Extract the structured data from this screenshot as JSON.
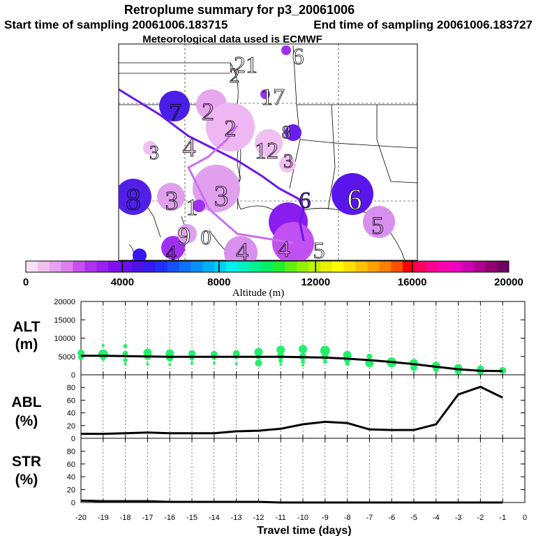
{
  "header": {
    "title": "Retroplume summary for p3_20061006",
    "start_label": "Start time of sampling 20061006.183715",
    "end_label": "End time of sampling 20061006.183727",
    "met_label": "Meteorological data used is ECMWF"
  },
  "map_labels": [
    {
      "text": "21",
      "color": "#ffffff"
    },
    {
      "text": "6",
      "color": "#ffffff"
    },
    {
      "text": "2",
      "color": "#f0b8f0"
    },
    {
      "text": "17",
      "color": "#ffffff"
    },
    {
      "text": "7",
      "color": "#4f20e0"
    },
    {
      "text": "2",
      "color": "#e0a0ee"
    },
    {
      "text": "2",
      "color": "#e0a0ee"
    },
    {
      "text": "12",
      "color": "#f0c0f0"
    },
    {
      "text": "3",
      "color": "#f0c0f0"
    },
    {
      "text": "4",
      "color": "#f0c0f0"
    },
    {
      "text": "8",
      "color": "#f0c0f0"
    },
    {
      "text": "3",
      "color": "#ffffff"
    },
    {
      "text": "8",
      "color": "#5020e8"
    },
    {
      "text": "3",
      "color": "#e0a0ee"
    },
    {
      "text": "3",
      "color": "#e0a0ee"
    },
    {
      "text": "6",
      "color": "#6a1cec"
    },
    {
      "text": "6",
      "color": "#ffffff"
    },
    {
      "text": "5",
      "color": "#d890ee"
    },
    {
      "text": "1",
      "color": "#ffffff"
    },
    {
      "text": "9",
      "color": "#ffffff"
    },
    {
      "text": "0",
      "color": "#ffffff"
    },
    {
      "text": "4",
      "color": "#a030f0"
    },
    {
      "text": "4",
      "color": "#d890ee"
    },
    {
      "text": "4",
      "color": "#e090ee"
    },
    {
      "text": "5",
      "color": "#ffffff"
    }
  ],
  "colorbar": {
    "ticks": [
      "0",
      "4000",
      "8000",
      "12000",
      "16000",
      "20000"
    ],
    "title": "Altitude (m)",
    "colors": [
      "#f8e0f8",
      "#f0c0f0",
      "#e8a0f0",
      "#dc80f0",
      "#c850f0",
      "#b030f0",
      "#9820f0",
      "#8010f0",
      "#6a10f0",
      "#5010e8",
      "#3818f0",
      "#2030f8",
      "#1850f8",
      "#1070f8",
      "#0890f8",
      "#00b0f8",
      "#00d0f0",
      "#00f0f0",
      "#00f0c0",
      "#00f090",
      "#00f060",
      "#20f030",
      "#60f010",
      "#90f000",
      "#c0f000",
      "#e8f000",
      "#ffff00",
      "#ffe000",
      "#ffc000",
      "#ffa000",
      "#ff8000",
      "#ff5000",
      "#ff0000",
      "#ff0060",
      "#ff0090",
      "#ff00b0",
      "#f000c0",
      "#d000b0",
      "#b00090",
      "#900070",
      "#700060"
    ]
  },
  "dot_color": "#22f06a",
  "chart_data": [
    {
      "type": "scatter",
      "panel": "ALT",
      "ylabel": "ALT\n(m)",
      "ylabel_lines": [
        "ALT",
        "(m)"
      ],
      "ylim": [
        0,
        20000
      ],
      "yticks": [
        "0",
        "5000",
        "10000",
        "15000",
        "20000"
      ],
      "x": [
        -20,
        -19,
        -18,
        -17,
        -16,
        -15,
        -14,
        -13,
        -12,
        -11,
        -10,
        -9,
        -8,
        -7,
        -6,
        -5,
        -4,
        -3,
        -2,
        -1
      ],
      "median_line": [
        5200,
        5200,
        5100,
        5000,
        4900,
        4900,
        4900,
        4900,
        4900,
        4900,
        4800,
        4700,
        4400,
        4000,
        3500,
        2900,
        2200,
        1500,
        1100,
        1000
      ],
      "points": [
        {
          "x": -20,
          "y": 6000,
          "s": 5
        },
        {
          "x": -20,
          "y": 4800,
          "s": 4
        },
        {
          "x": -19,
          "y": 8000,
          "s": 2
        },
        {
          "x": -19,
          "y": 5600,
          "s": 7
        },
        {
          "x": -19,
          "y": 4400,
          "s": 3
        },
        {
          "x": -18,
          "y": 7800,
          "s": 3
        },
        {
          "x": -18,
          "y": 5800,
          "s": 4
        },
        {
          "x": -18,
          "y": 4000,
          "s": 3
        },
        {
          "x": -18,
          "y": 3000,
          "s": 2
        },
        {
          "x": -17,
          "y": 6000,
          "s": 6
        },
        {
          "x": -17,
          "y": 5000,
          "s": 5
        },
        {
          "x": -17,
          "y": 3000,
          "s": 2
        },
        {
          "x": -16,
          "y": 5800,
          "s": 6
        },
        {
          "x": -16,
          "y": 4600,
          "s": 5
        },
        {
          "x": -16,
          "y": 2800,
          "s": 2
        },
        {
          "x": -15,
          "y": 5800,
          "s": 5
        },
        {
          "x": -15,
          "y": 4400,
          "s": 3
        },
        {
          "x": -15,
          "y": 3200,
          "s": 2
        },
        {
          "x": -14,
          "y": 5600,
          "s": 5
        },
        {
          "x": -14,
          "y": 4600,
          "s": 3
        },
        {
          "x": -14,
          "y": 3200,
          "s": 2
        },
        {
          "x": -13,
          "y": 5800,
          "s": 5
        },
        {
          "x": -13,
          "y": 4800,
          "s": 3
        },
        {
          "x": -13,
          "y": 3000,
          "s": 2
        },
        {
          "x": -12,
          "y": 6200,
          "s": 6
        },
        {
          "x": -12,
          "y": 5000,
          "s": 4
        },
        {
          "x": -12,
          "y": 3200,
          "s": 5
        },
        {
          "x": -11,
          "y": 6800,
          "s": 6
        },
        {
          "x": -11,
          "y": 5200,
          "s": 5
        },
        {
          "x": -11,
          "y": 3800,
          "s": 3
        },
        {
          "x": -11,
          "y": 2800,
          "s": 2
        },
        {
          "x": -10,
          "y": 7000,
          "s": 6
        },
        {
          "x": -10,
          "y": 5000,
          "s": 5
        },
        {
          "x": -10,
          "y": 3600,
          "s": 3
        },
        {
          "x": -10,
          "y": 2600,
          "s": 2
        },
        {
          "x": -9,
          "y": 6600,
          "s": 7
        },
        {
          "x": -9,
          "y": 5000,
          "s": 5
        },
        {
          "x": -9,
          "y": 3600,
          "s": 3
        },
        {
          "x": -8,
          "y": 5400,
          "s": 6
        },
        {
          "x": -8,
          "y": 4200,
          "s": 5
        },
        {
          "x": -8,
          "y": 3000,
          "s": 3
        },
        {
          "x": -7,
          "y": 5000,
          "s": 4
        },
        {
          "x": -7,
          "y": 3200,
          "s": 6
        },
        {
          "x": -6,
          "y": 3400,
          "s": 7
        },
        {
          "x": -6,
          "y": 4000,
          "s": 3
        },
        {
          "x": -5,
          "y": 3200,
          "s": 6
        },
        {
          "x": -5,
          "y": 2000,
          "s": 5
        },
        {
          "x": -4,
          "y": 2400,
          "s": 6
        },
        {
          "x": -4,
          "y": 1500,
          "s": 4
        },
        {
          "x": -3,
          "y": 1800,
          "s": 6
        },
        {
          "x": -3,
          "y": 1000,
          "s": 5
        },
        {
          "x": -2,
          "y": 1600,
          "s": 5
        },
        {
          "x": -2,
          "y": 900,
          "s": 5
        },
        {
          "x": -1,
          "y": 1200,
          "s": 5
        }
      ]
    },
    {
      "type": "line",
      "panel": "ABL",
      "ylabel_lines": [
        "ABL",
        "(%)"
      ],
      "ylim": [
        0,
        100
      ],
      "yticks": [
        "0",
        "20",
        "40",
        "60",
        "80"
      ],
      "x": [
        -20,
        -19,
        -18,
        -17,
        -16,
        -15,
        -14,
        -13,
        -12,
        -11,
        -10,
        -9,
        -8,
        -7,
        -6,
        -5,
        -4,
        -3,
        -2,
        -1
      ],
      "values": [
        7,
        7,
        8,
        9,
        8,
        8,
        8,
        11,
        12,
        15,
        22,
        26,
        24,
        14,
        13,
        13,
        22,
        69,
        81,
        64
      ]
    },
    {
      "type": "line",
      "panel": "STR",
      "ylabel_lines": [
        "STR",
        "(%)"
      ],
      "ylim": [
        0,
        100
      ],
      "yticks": [
        "0",
        "20",
        "40",
        "60",
        "80"
      ],
      "x": [
        -20,
        -19,
        -18,
        -17,
        -16,
        -15,
        -14,
        -13,
        -12,
        -11,
        -10,
        -9,
        -8,
        -7,
        -6,
        -5,
        -4,
        -3,
        -2,
        -1
      ],
      "values": [
        3,
        2,
        2,
        2,
        1,
        1,
        1,
        1,
        1,
        0,
        0,
        0,
        0,
        0,
        0,
        0,
        0,
        0,
        0,
        0
      ]
    }
  ],
  "xaxis": {
    "ticks": [
      "-20",
      "-19",
      "-18",
      "-17",
      "-16",
      "-15",
      "-14",
      "-13",
      "-12",
      "-11",
      "-10",
      "-9",
      "-8",
      "-7",
      "-6",
      "-5",
      "-4",
      "-3",
      "-2",
      "-1",
      "0"
    ],
    "title": "Travel time (days)"
  }
}
